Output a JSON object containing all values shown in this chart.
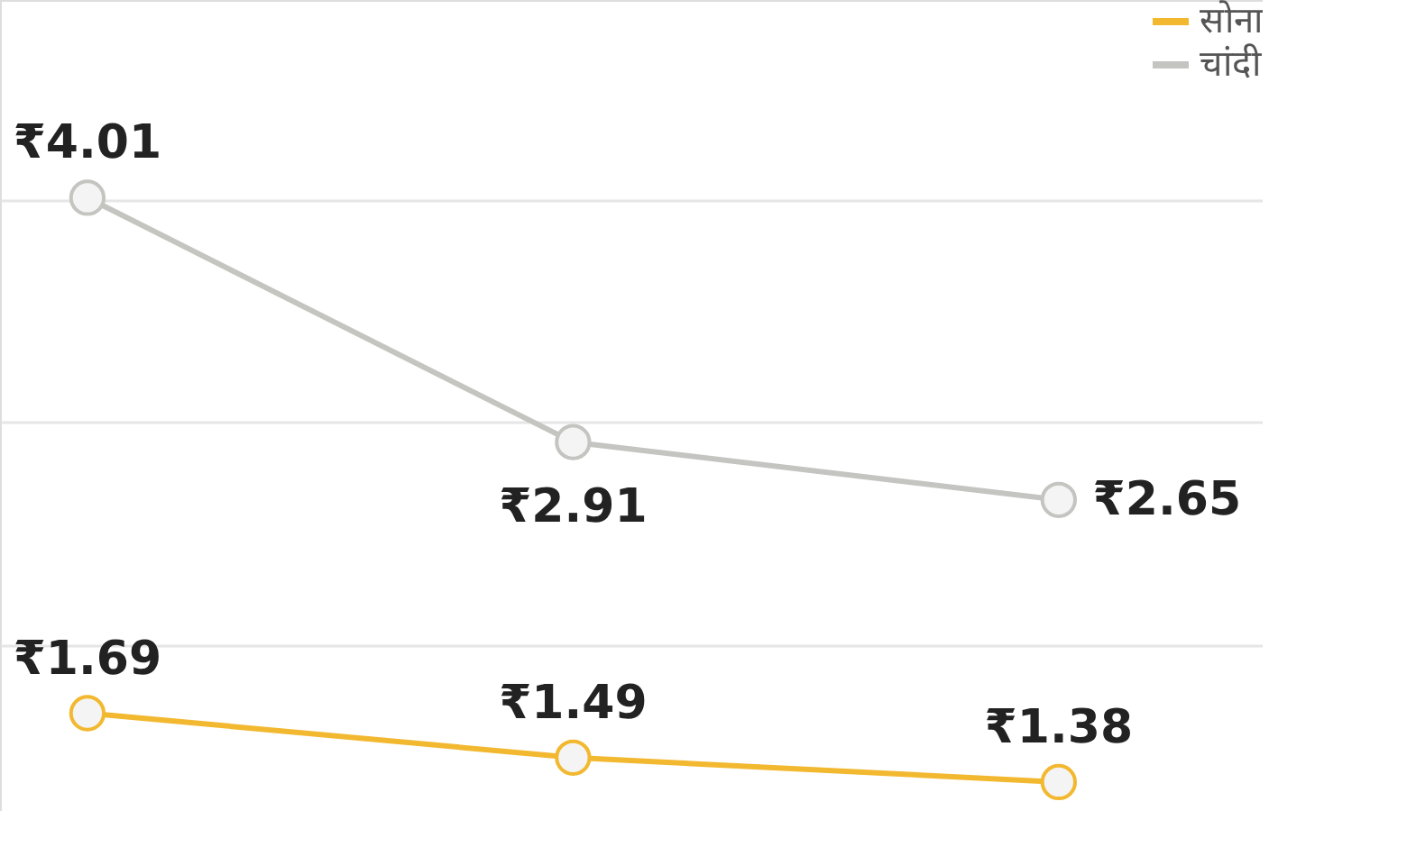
{
  "chart_data": {
    "type": "line",
    "categories": [
      null,
      null,
      null
    ],
    "series": [
      {
        "name": "सोना",
        "color": "#f2b830",
        "values": [
          1.69,
          1.49,
          1.38
        ],
        "value_labels": [
          "₹1.69",
          "₹1.49",
          "₹1.38"
        ]
      },
      {
        "name": "चांदी",
        "color": "#c4c4c0",
        "values": [
          4.01,
          2.91,
          2.65
        ],
        "value_labels": [
          "₹4.01",
          "₹2.91",
          "₹2.65"
        ]
      }
    ],
    "ylim": [
      1.25,
      4.9
    ],
    "yticks": [
      {
        "value": 2,
        "label": null
      },
      {
        "value": 3,
        "label": null
      },
      {
        "value": 4,
        "label": null
      }
    ],
    "grid": "y",
    "legend": "top right",
    "marker": "circle",
    "line_style": "solid",
    "tick_labels": false
  }
}
